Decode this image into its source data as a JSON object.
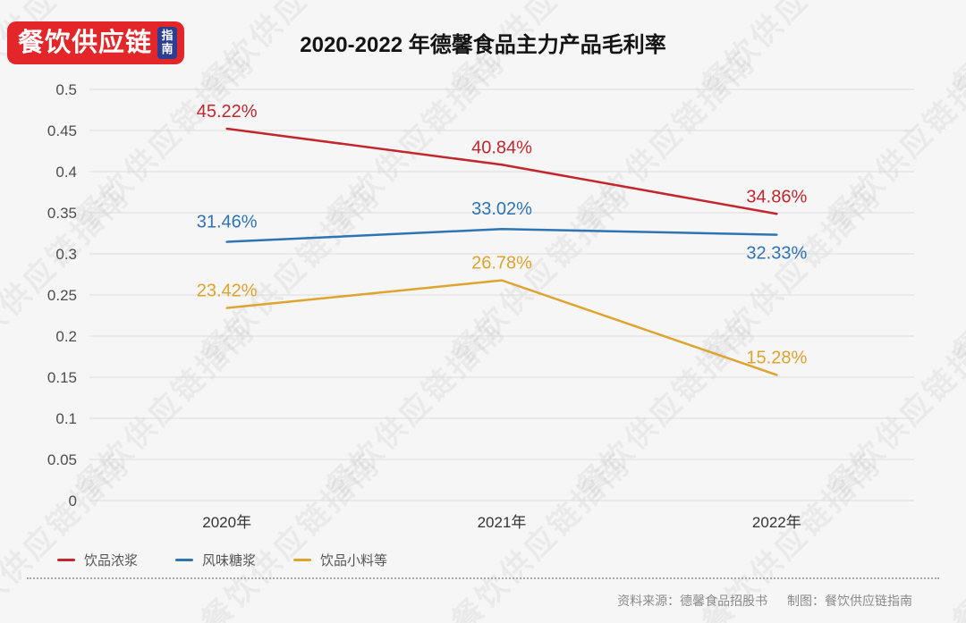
{
  "logo": {
    "brand": "餐饮供应链",
    "badge": "指南"
  },
  "title": "2020-2022 年德馨食品主力产品毛利率",
  "chart_data": {
    "type": "line",
    "title": "2020-2022 年德馨食品主力产品毛利率",
    "categories": [
      "2020年",
      "2021年",
      "2022年"
    ],
    "series": [
      {
        "name": "饮品浓浆",
        "color": "#c2272d",
        "values": [
          0.4522,
          0.4084,
          0.3486
        ],
        "point_labels": [
          "45.22%",
          "40.84%",
          "34.86%"
        ]
      },
      {
        "name": "风味糖浆",
        "color": "#2e74b5",
        "values": [
          0.3146,
          0.3302,
          0.3233
        ],
        "point_labels": [
          "31.46%",
          "33.02%",
          "32.33%"
        ]
      },
      {
        "name": "饮品小料等",
        "color": "#dfa32f",
        "values": [
          0.2342,
          0.2678,
          0.1528
        ],
        "point_labels": [
          "23.42%",
          "26.78%",
          "15.28%"
        ]
      }
    ],
    "ylim": [
      0,
      0.5
    ],
    "yticks": [
      0,
      0.05,
      0.1,
      0.15,
      0.2,
      0.25,
      0.3,
      0.35,
      0.4,
      0.45,
      0.5
    ],
    "ytick_labels": [
      "0",
      "0.05",
      "0.1",
      "0.15",
      "0.2",
      "0.25",
      "0.3",
      "0.35",
      "0.4",
      "0.45",
      "0.5"
    ],
    "grid": true,
    "legend_position": "bottom-left"
  },
  "footer": {
    "source": "资料来源：德馨食品招股书",
    "credit": "制图：餐饮供应链指南"
  },
  "watermark": {
    "text": "餐饮供应链指南"
  },
  "colors": {
    "background": "#f6f6f6",
    "grid": "#dcdcdc",
    "axis_text": "#4d4d4d",
    "category_text": "#333333",
    "title_text": "#141414",
    "logo_red": "#e22629",
    "badge_blue": "#2b3e91",
    "legend_text": "#555555",
    "footer_text": "#8a8a8a"
  }
}
